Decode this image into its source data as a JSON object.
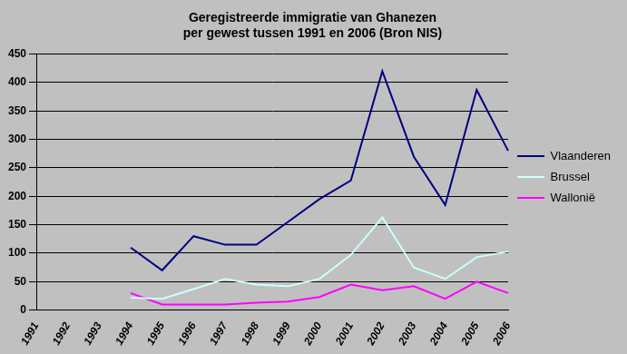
{
  "chart_data": {
    "type": "line",
    "title": [
      "Geregistreerde immigratie van Ghanezen",
      "per gewest tussen 1991 en 2006 (Bron NIS)"
    ],
    "categories": [
      "1991",
      "1992",
      "1993",
      "1994",
      "1995",
      "1996",
      "1997",
      "1998",
      "1999",
      "2000",
      "2001",
      "2002",
      "2003",
      "2004",
      "2005",
      "2006"
    ],
    "series": [
      {
        "name": "Vlaanderen",
        "color": "#000080",
        "values": [
          null,
          null,
          null,
          110,
          70,
          130,
          115,
          115,
          155,
          195,
          228,
          420,
          270,
          185,
          387,
          280
        ]
      },
      {
        "name": "Brussel",
        "color": "#ccffff",
        "values": [
          null,
          null,
          null,
          22,
          20,
          37,
          55,
          45,
          42,
          55,
          97,
          163,
          75,
          55,
          93,
          103
        ]
      },
      {
        "name": "Wallonië",
        "color": "#ff00ff",
        "values": [
          null,
          null,
          null,
          30,
          10,
          10,
          10,
          13,
          15,
          23,
          45,
          35,
          42,
          20,
          50,
          30
        ]
      }
    ],
    "ylim": [
      0,
      450
    ],
    "yticks": [
      0,
      50,
      100,
      150,
      200,
      250,
      300,
      350,
      400,
      450
    ],
    "grid": true,
    "legend": "right"
  }
}
